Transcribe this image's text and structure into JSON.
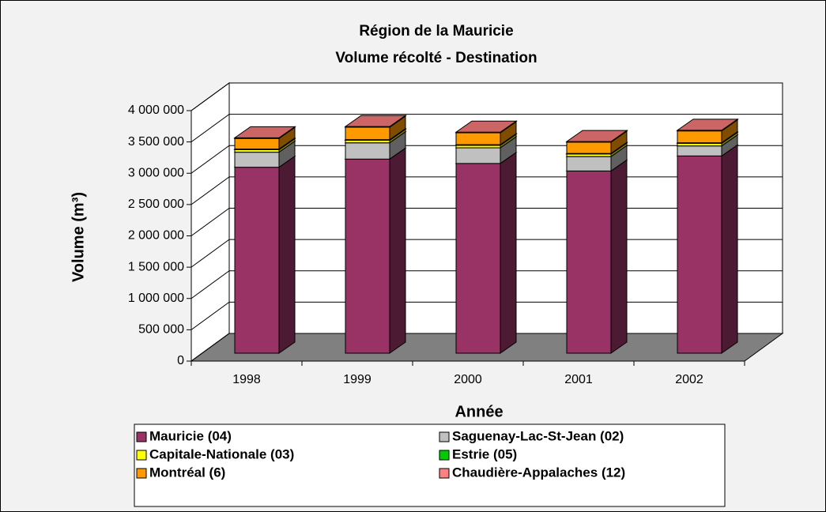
{
  "chart_data": {
    "type": "bar3d_stacked",
    "title": [
      "Région de la Mauricie",
      "Volume récolté - Destination"
    ],
    "x_label": "Année",
    "y_label": "Volume (m³)",
    "categories": [
      "1998",
      "1999",
      "2000",
      "2001",
      "2002"
    ],
    "series": [
      {
        "name": "Mauricie (04)",
        "color": "#993366",
        "values": [
          2970000,
          3100000,
          3030000,
          2910000,
          3150000
        ]
      },
      {
        "name": "Saguenay-Lac-St-Jean (02)",
        "color": "#c0c0c0",
        "values": [
          240000,
          260000,
          250000,
          230000,
          160000
        ]
      },
      {
        "name": "Capitale-Nationale (03)",
        "color": "#ffff00",
        "values": [
          40000,
          40000,
          40000,
          40000,
          40000
        ]
      },
      {
        "name": "Estrie (05)",
        "color": "#00cc00",
        "values": [
          10000,
          10000,
          10000,
          10000,
          10000
        ]
      },
      {
        "name": "Montréal (6)",
        "color": "#ff9900",
        "values": [
          170000,
          200000,
          190000,
          180000,
          190000
        ]
      },
      {
        "name": "Chaudière-Appalaches (12)",
        "color": "#ff8080",
        "values": [
          10000,
          10000,
          10000,
          10000,
          10000
        ]
      }
    ],
    "ylim": [
      0,
      4000000
    ],
    "yticks": [
      0,
      {
        "value": 500000,
        "label": "500 000"
      },
      {
        "value": 1000000,
        "label": "1 000 000"
      },
      {
        "value": 1500000,
        "label": "1 500 000"
      },
      {
        "value": 2000000,
        "label": "2 000 000"
      },
      {
        "value": 2500000,
        "label": "2 500 000"
      },
      {
        "value": 3000000,
        "label": "3 000 000"
      },
      {
        "value": 3500000,
        "label": "3 500 000"
      },
      {
        "value": 4000000,
        "label": "4 000 000"
      }
    ],
    "grid": true
  }
}
